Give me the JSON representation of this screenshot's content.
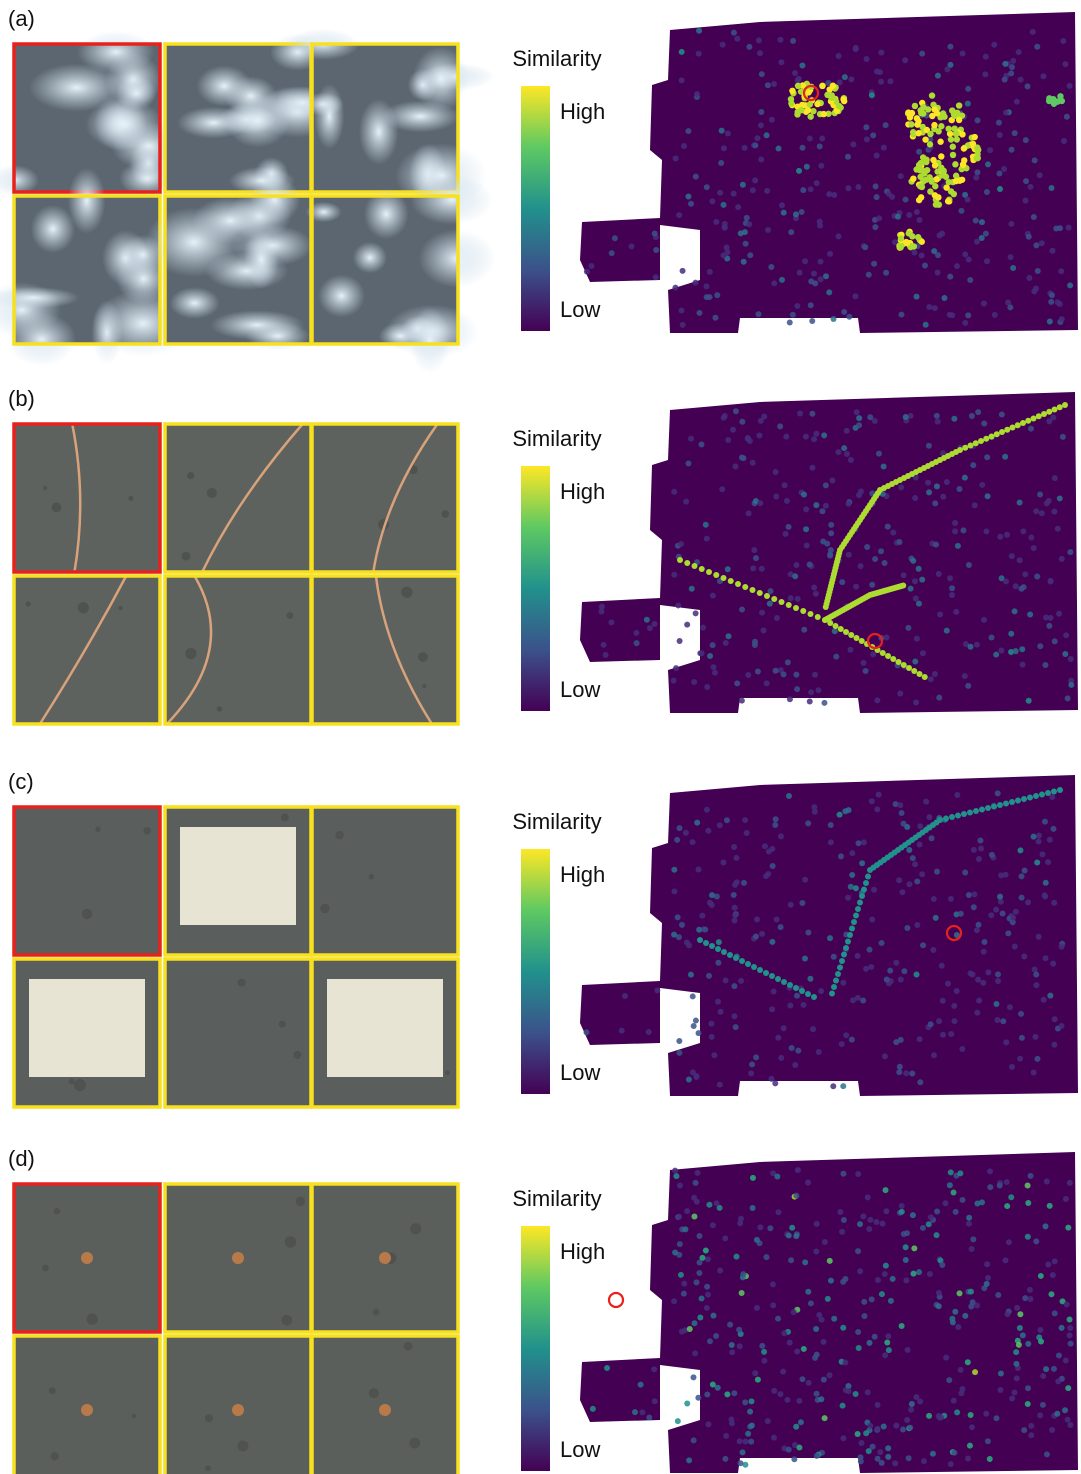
{
  "panels": [
    {
      "label": "(a)",
      "colorbar": {
        "title": "Similarity",
        "high": "High",
        "low": "Low"
      }
    },
    {
      "label": "(b)",
      "colorbar": {
        "title": "Similarity",
        "high": "High",
        "low": "Low"
      }
    },
    {
      "label": "(c)",
      "colorbar": {
        "title": "Similarity",
        "high": "High",
        "low": "Low"
      }
    },
    {
      "label": "(d)",
      "colorbar": {
        "title": "Similarity",
        "high": "High",
        "low": "Low"
      }
    }
  ]
}
